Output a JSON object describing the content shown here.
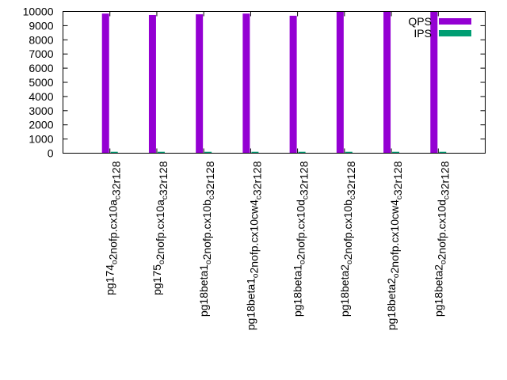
{
  "chart_data": {
    "type": "bar",
    "categories": [
      "pg174_o2nofp.cx10a_c32r128",
      "pg175_o2nofp.cx10a_c32r128",
      "pg18beta1_o2nofp.cx10b_c32r128",
      "pg18beta1_o2nofp.cx10cw4_c32r128",
      "pg18beta1_o2nofp.cx10d_c32r128",
      "pg18beta2_o2nofp.cx10b_c32r128",
      "pg18beta2_o2nofp.cx10cw4_c32r128",
      "pg18beta2_o2nofp.cx10d_c32r128"
    ],
    "category_display": [
      {
        "parts": [
          [
            "pg174",
            ""
          ],
          [
            "o",
            "sub"
          ],
          [
            "2nofp.cx10a",
            ""
          ],
          [
            "c",
            "sub"
          ],
          [
            "32r128",
            ""
          ]
        ]
      },
      {
        "parts": [
          [
            "pg175",
            ""
          ],
          [
            "o",
            "sub"
          ],
          [
            "2nofp.cx10a",
            ""
          ],
          [
            "c",
            "sub"
          ],
          [
            "32r128",
            ""
          ]
        ]
      },
      {
        "parts": [
          [
            "pg18beta1",
            ""
          ],
          [
            "o",
            "sub"
          ],
          [
            "2nofp.cx10b",
            ""
          ],
          [
            "c",
            "sub"
          ],
          [
            "32r128",
            ""
          ]
        ]
      },
      {
        "parts": [
          [
            "pg18beta1",
            ""
          ],
          [
            "o",
            "sub"
          ],
          [
            "2nofp.cx10cw4",
            ""
          ],
          [
            "c",
            "sub"
          ],
          [
            "32r128",
            ""
          ]
        ]
      },
      {
        "parts": [
          [
            "pg18beta1",
            ""
          ],
          [
            "o",
            "sub"
          ],
          [
            "2nofp.cx10d",
            ""
          ],
          [
            "c",
            "sub"
          ],
          [
            "32r128",
            ""
          ]
        ]
      },
      {
        "parts": [
          [
            "pg18beta2",
            ""
          ],
          [
            "o",
            "sub"
          ],
          [
            "2nofp.cx10b",
            ""
          ],
          [
            "c",
            "sub"
          ],
          [
            "32r128",
            ""
          ]
        ]
      },
      {
        "parts": [
          [
            "pg18beta2",
            ""
          ],
          [
            "o",
            "sub"
          ],
          [
            "2nofp.cx10cw4",
            ""
          ],
          [
            "c",
            "sub"
          ],
          [
            "32r128",
            ""
          ]
        ]
      },
      {
        "parts": [
          [
            "pg18beta2",
            ""
          ],
          [
            "o",
            "sub"
          ],
          [
            "2nofp.cx10d",
            ""
          ],
          [
            "c",
            "sub"
          ],
          [
            "32r128",
            ""
          ]
        ]
      }
    ],
    "series": [
      {
        "name": "QPS",
        "color": "#9400d3",
        "values": [
          9850,
          9750,
          9800,
          9850,
          9700,
          10000,
          10000,
          10000
        ]
      },
      {
        "name": "IPS",
        "color": "#009e73",
        "values": [
          100,
          100,
          100,
          100,
          100,
          100,
          100,
          100
        ]
      }
    ],
    "ylim": [
      0,
      10000
    ],
    "yticks": [
      "0",
      "1000",
      "2000",
      "3000",
      "4000",
      "5000",
      "6000",
      "7000",
      "8000",
      "9000",
      "10000"
    ],
    "title": "",
    "xlabel": "",
    "ylabel": "",
    "legend_position": "top-right",
    "grid": false
  }
}
